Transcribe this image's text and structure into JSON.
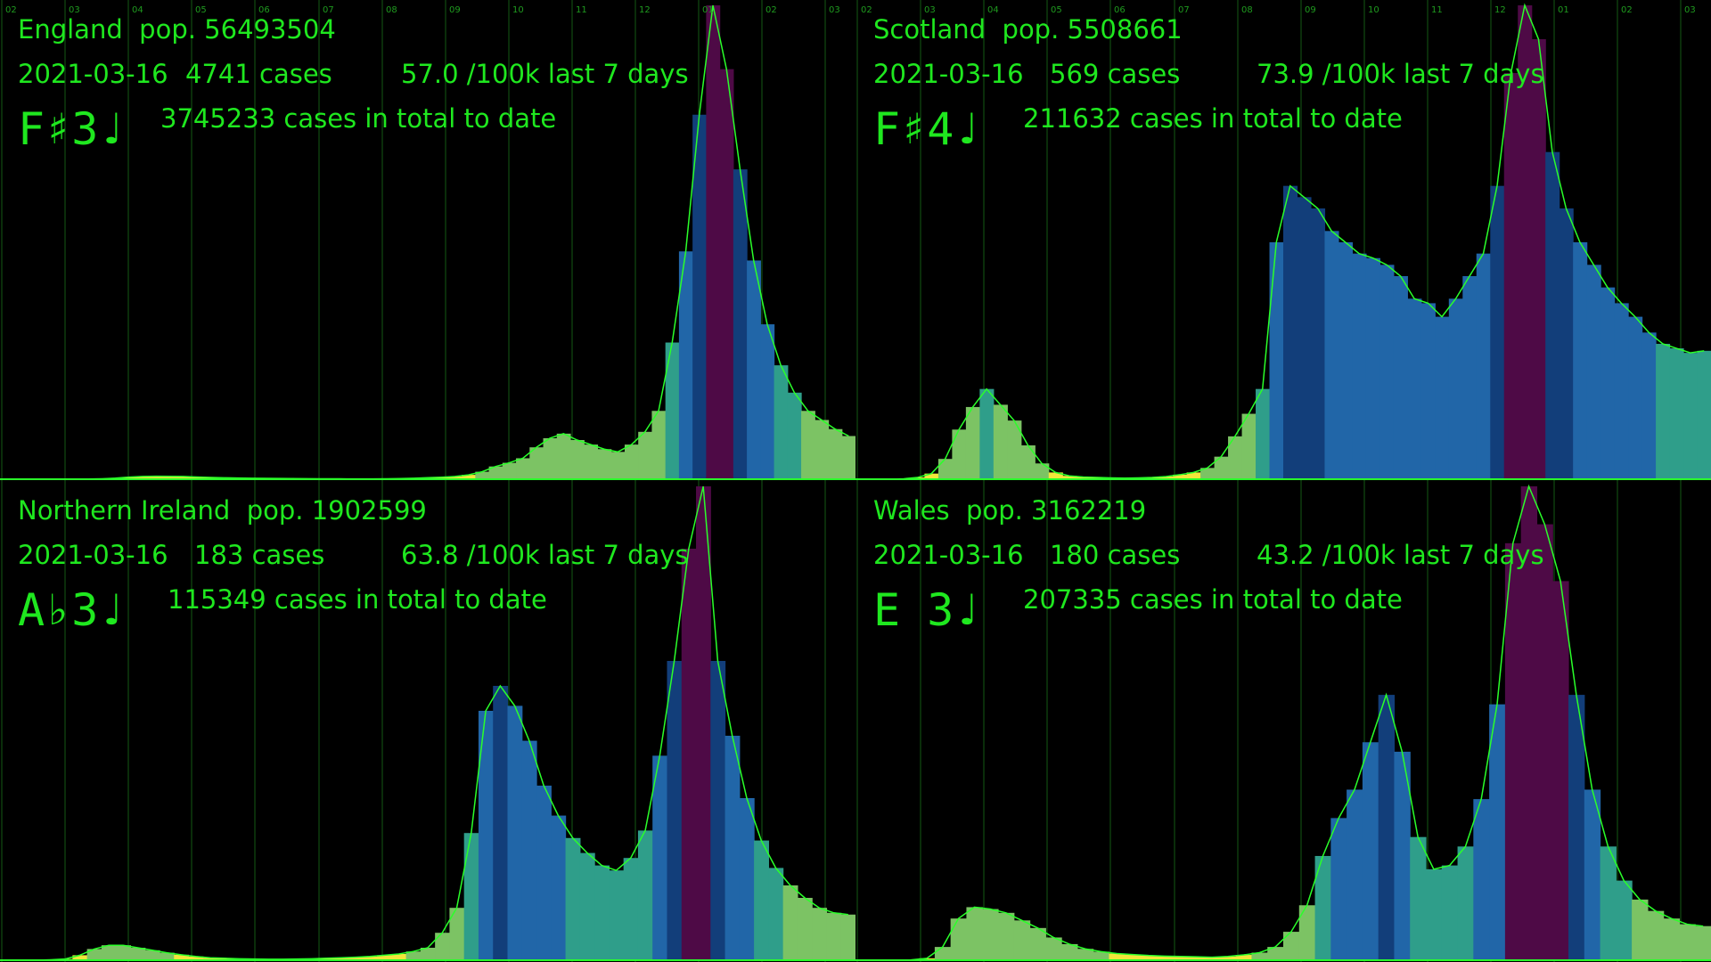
{
  "colors": {
    "text": "#1fe81f",
    "grid": "#145a14",
    "outline": "#2aff2a",
    "scale": [
      "#f2e63a",
      "#7cc364",
      "#2f9e8a",
      "#2166a8",
      "#123e7a",
      "#4e0a46"
    ]
  },
  "chart_data": [
    {
      "type": "area",
      "region": "England",
      "pop_label": "pop. 56493504",
      "date": "2021-03-16",
      "cases_label": "4741 cases",
      "rate_label": "57.0 /100k last 7 days",
      "note": "F♯3♩",
      "total_label": "3745233 cases in total to date",
      "xticks": [
        "02",
        "03",
        "04",
        "05",
        "06",
        "07",
        "08",
        "09",
        "10",
        "11",
        "12",
        "01",
        "02",
        "03"
      ],
      "x_range": [
        "2020-02-01",
        "2021-03-16"
      ],
      "values": [
        0,
        0,
        0,
        2,
        3,
        5,
        20,
        55,
        120,
        230,
        310,
        330,
        320,
        300,
        250,
        200,
        160,
        130,
        110,
        95,
        80,
        72,
        62,
        55,
        48,
        42,
        40,
        40,
        50,
        70,
        110,
        170,
        220,
        300,
        480,
        820,
        1400,
        1800,
        2300,
        3500,
        4500,
        5000,
        4300,
        3800,
        3300,
        3000,
        3800,
        5200,
        7500,
        15000,
        25000,
        40000,
        52000,
        45000,
        34000,
        24000,
        17000,
        12500,
        9500,
        7500,
        6500,
        5500,
        4741
      ],
      "grid": true
    },
    {
      "type": "area",
      "region": "Scotland",
      "pop_label": "pop. 5508661",
      "date": "2021-03-16",
      "cases_label": "569 cases",
      "rate_label": "73.9 /100k last 7 days",
      "note": "F♯4♩",
      "total_label": "211632 cases in total to date",
      "xticks": [
        "02",
        "03",
        "04",
        "05",
        "06",
        "07",
        "08",
        "09",
        "10",
        "11",
        "12",
        "01",
        "02",
        "03"
      ],
      "x_range": [
        "2020-02-01",
        "2021-03-16"
      ],
      "values": [
        0,
        0,
        0,
        2,
        8,
        25,
        90,
        220,
        320,
        400,
        330,
        260,
        150,
        70,
        30,
        15,
        10,
        8,
        6,
        5,
        6,
        8,
        12,
        20,
        30,
        50,
        100,
        190,
        290,
        400,
        1050,
        1300,
        1250,
        1200,
        1100,
        1050,
        1000,
        980,
        950,
        900,
        800,
        780,
        720,
        800,
        900,
        1000,
        1300,
        1800,
        2100,
        1950,
        1450,
        1200,
        1050,
        950,
        850,
        780,
        720,
        650,
        600,
        580,
        560,
        569
      ],
      "grid": true
    },
    {
      "type": "area",
      "region": "Northern Ireland",
      "pop_label": "pop. 1902599",
      "date": "2021-03-16",
      "cases_label": "183 cases",
      "rate_label": "63.8 /100k last 7 days",
      "note": "A♭3♩",
      "total_label": "115349 cases in total to date",
      "xticks": [],
      "x_range": [
        "2020-02-01",
        "2021-03-16"
      ],
      "values": [
        0,
        0,
        0,
        2,
        5,
        20,
        45,
        60,
        60,
        50,
        40,
        30,
        22,
        15,
        10,
        8,
        6,
        5,
        4,
        4,
        5,
        6,
        8,
        10,
        12,
        15,
        20,
        25,
        35,
        50,
        110,
        210,
        510,
        1000,
        1100,
        1020,
        880,
        700,
        580,
        490,
        430,
        380,
        360,
        410,
        520,
        820,
        1200,
        1650,
        1900,
        1200,
        900,
        650,
        480,
        370,
        300,
        250,
        210,
        190,
        183
      ],
      "grid": true
    },
    {
      "type": "area",
      "region": "Wales",
      "pop_label": "pop. 3162219",
      "date": "2021-03-16",
      "cases_label": "180 cases",
      "rate_label": "43.2 /100k last 7 days",
      "note": "E  3♩",
      "total_label": "207335 cases in total to date",
      "xticks": [],
      "x_range": [
        "2020-02-01",
        "2021-03-16"
      ],
      "values": [
        0,
        0,
        0,
        2,
        10,
        70,
        220,
        280,
        270,
        250,
        210,
        170,
        120,
        85,
        60,
        45,
        35,
        30,
        25,
        22,
        20,
        18,
        16,
        20,
        28,
        40,
        70,
        150,
        290,
        550,
        750,
        900,
        1150,
        1400,
        1100,
        650,
        480,
        500,
        600,
        850,
        1350,
        2200,
        2500,
        2300,
        2000,
        1400,
        900,
        600,
        420,
        320,
        260,
        220,
        190,
        180
      ],
      "grid": true
    }
  ]
}
